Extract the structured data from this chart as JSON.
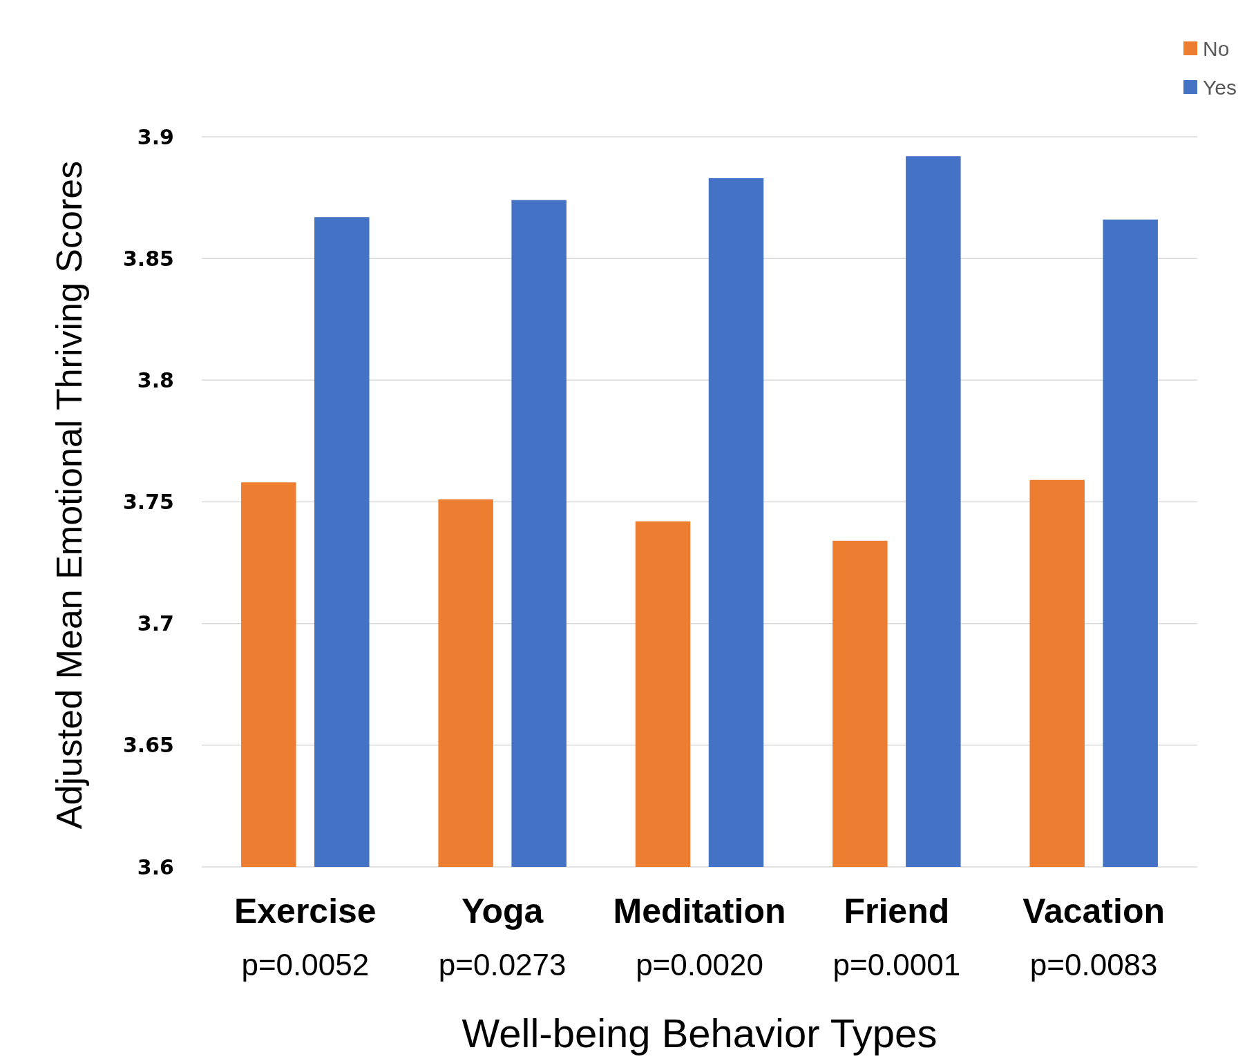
{
  "chart_data": {
    "type": "bar",
    "xlabel": "Well-being Behavior Types",
    "ylabel": "Adjusted Mean Emotional Thriving Scores",
    "categories": [
      "Exercise",
      "Yoga",
      "Meditation",
      "Friend",
      "Vacation"
    ],
    "series": [
      {
        "name": "No",
        "color": "#ed7d31",
        "values": [
          3.758,
          3.751,
          3.742,
          3.734,
          3.759
        ]
      },
      {
        "name": "Yes",
        "color": "#4472c4",
        "values": [
          3.867,
          3.874,
          3.883,
          3.892,
          3.866
        ]
      }
    ],
    "ylim": [
      3.6,
      3.9
    ],
    "yticks": [
      3.6,
      3.65,
      3.7,
      3.75,
      3.8,
      3.85,
      3.9
    ],
    "grid": "y",
    "legend": "top right",
    "annotations": [
      "p=0.0052",
      "p=0.0273",
      "p=0.0020",
      "p=0.0001",
      "p=0.0083"
    ]
  }
}
